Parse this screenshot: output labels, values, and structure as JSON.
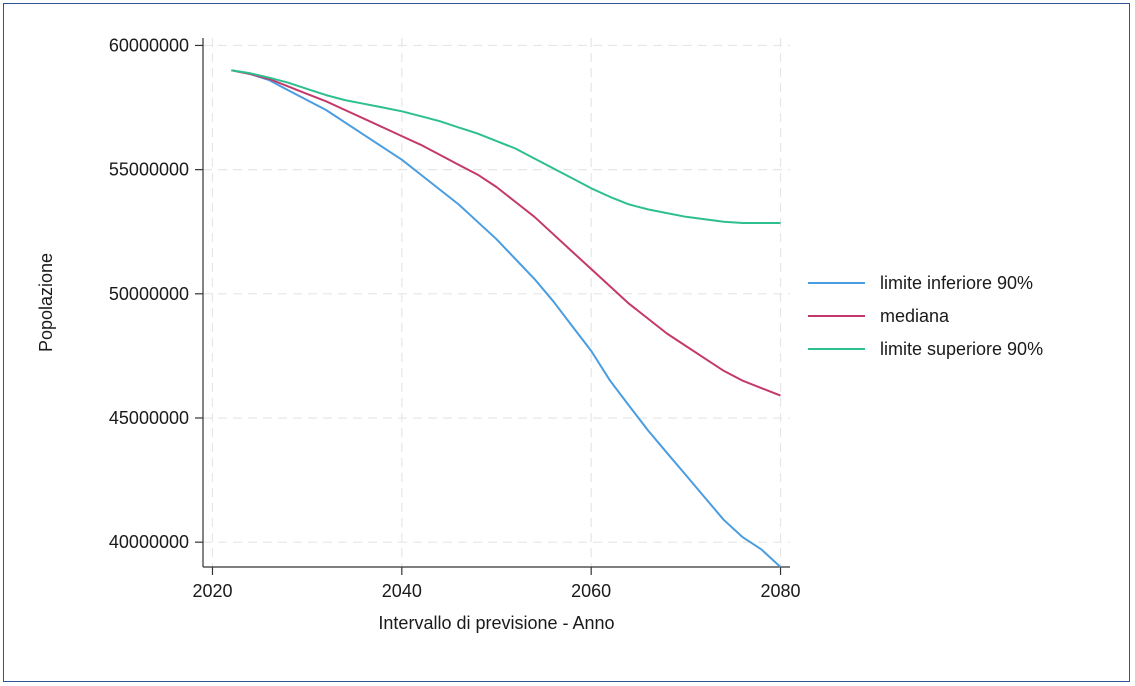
{
  "chart_data": {
    "type": "line",
    "title": "",
    "xlabel": "Intervallo di previsione - Anno",
    "ylabel": "Popolazione",
    "xlim": [
      2019,
      2081
    ],
    "ylim": [
      39000000,
      60300000
    ],
    "xticks": [
      2020,
      2040,
      2060,
      2080
    ],
    "xtick_labels": [
      "2020",
      "2040",
      "2060",
      "2080"
    ],
    "yticks": [
      40000000,
      45000000,
      50000000,
      55000000,
      60000000
    ],
    "ytick_labels": [
      "40000000",
      "45000000",
      "50000000",
      "55000000",
      "60000000"
    ],
    "grid": true,
    "legend_position": "right",
    "x": [
      2022,
      2024,
      2026,
      2028,
      2030,
      2032,
      2034,
      2036,
      2038,
      2040,
      2042,
      2044,
      2046,
      2048,
      2050,
      2052,
      2054,
      2056,
      2058,
      2060,
      2062,
      2064,
      2066,
      2068,
      2070,
      2072,
      2074,
      2076,
      2078,
      2080
    ],
    "series": [
      {
        "name": "limite inferiore 90%",
        "color": "#4a9de0",
        "values": [
          59000000,
          58850000,
          58600000,
          58200000,
          57800000,
          57400000,
          56900000,
          56400000,
          55900000,
          55400000,
          54800000,
          54200000,
          53600000,
          52900000,
          52200000,
          51400000,
          50600000,
          49700000,
          48700000,
          47700000,
          46500000,
          45500000,
          44500000,
          43600000,
          42700000,
          41800000,
          40900000,
          40200000,
          39700000,
          39000000
        ]
      },
      {
        "name": "mediana",
        "color": "#c4396b",
        "values": [
          59000000,
          58850000,
          58650000,
          58350000,
          58050000,
          57750000,
          57400000,
          57050000,
          56700000,
          56350000,
          56000000,
          55600000,
          55200000,
          54800000,
          54300000,
          53700000,
          53100000,
          52400000,
          51700000,
          51000000,
          50300000,
          49600000,
          49000000,
          48400000,
          47900000,
          47400000,
          46900000,
          46500000,
          46200000,
          45900000
        ]
      },
      {
        "name": "limite superiore 90%",
        "color": "#2ebf8f",
        "values": [
          59000000,
          58880000,
          58700000,
          58500000,
          58250000,
          58000000,
          57800000,
          57650000,
          57500000,
          57350000,
          57150000,
          56950000,
          56700000,
          56450000,
          56150000,
          55850000,
          55450000,
          55050000,
          54650000,
          54250000,
          53900000,
          53600000,
          53400000,
          53250000,
          53100000,
          53000000,
          52900000,
          52850000,
          52850000,
          52850000
        ]
      }
    ]
  }
}
